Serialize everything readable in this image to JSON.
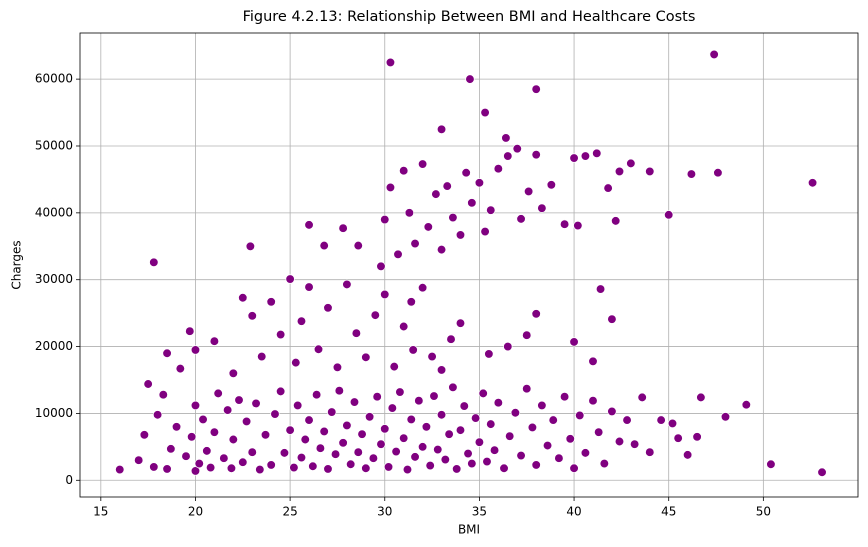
{
  "chart_data": {
    "type": "scatter",
    "title": "Figure 4.2.13: Relationship Between BMI and Healthcare Costs",
    "x_label": "BMI",
    "y_label": "Charges",
    "color": "#800080",
    "grid": true,
    "xlim": [
      13.9,
      55.0
    ],
    "ylim": [
      -2500,
      66900
    ],
    "xticks": [
      15,
      20,
      25,
      30,
      35,
      40,
      45,
      50
    ],
    "yticks": [
      0,
      10000,
      20000,
      30000,
      40000,
      50000,
      60000
    ],
    "x": [
      16,
      17,
      17.3,
      17.5,
      17.8,
      18,
      18.3,
      18.5,
      18.7,
      19,
      19.2,
      19.5,
      19.8,
      20,
      20,
      20.2,
      20.4,
      20.6,
      20.8,
      21,
      21.2,
      21.5,
      21.7,
      21.9,
      22,
      22.3,
      22.5,
      22.7,
      23,
      23.2,
      23.4,
      23.7,
      24,
      24.2,
      24.5,
      24.7,
      25,
      25.2,
      25.4,
      25.6,
      25.8,
      26,
      26.2,
      26.4,
      26.6,
      26.8,
      27,
      27.2,
      27.4,
      27.6,
      27.8,
      28,
      28.2,
      28.4,
      28.6,
      28.8,
      29,
      29.2,
      29.4,
      29.6,
      29.8,
      30,
      30.2,
      30.4,
      30.6,
      30.8,
      31,
      31.2,
      31.4,
      31.6,
      31.8,
      32,
      32.2,
      32.4,
      32.6,
      32.8,
      33,
      33.2,
      33.4,
      33.6,
      33.8,
      34,
      34.2,
      34.4,
      34.6,
      34.8,
      35,
      35.2,
      35.4,
      35.6,
      35.8,
      36,
      36.3,
      36.6,
      36.9,
      37.2,
      37.5,
      37.8,
      38,
      38.3,
      38.6,
      38.9,
      39.2,
      39.5,
      39.8,
      40,
      40.3,
      40.6,
      41,
      41.3,
      41.6,
      42,
      42.4,
      42.8,
      43.2,
      43.6,
      44,
      44.6,
      45.2,
      45.5,
      46,
      46.5,
      46.7,
      48,
      49.1,
      50.4,
      53.1,
      18.5,
      19.7,
      20,
      21,
      22,
      22.5,
      23,
      23.5,
      24,
      24.5,
      25,
      25.3,
      25.6,
      26,
      26.5,
      27,
      27.5,
      28,
      28.5,
      29,
      29.5,
      30,
      30.5,
      31,
      31.5,
      32,
      32.5,
      33,
      33.5,
      34,
      35.5,
      36.5,
      37.5,
      38,
      40,
      41,
      41.4,
      42,
      31.4,
      30,
      30.3,
      30.7,
      31,
      31.3,
      31.6,
      32,
      32.3,
      32.7,
      33,
      33.3,
      33.6,
      34,
      34.3,
      34.6,
      35,
      35.3,
      35.6,
      36,
      36.4,
      36.5,
      37,
      37.2,
      37.6,
      38,
      38.3,
      38.8,
      39.5,
      40,
      40.6,
      41.2,
      41.8,
      42.4,
      43,
      44,
      45,
      46.2,
      47.6,
      52.6,
      42.2,
      40.2,
      30.3,
      34.5,
      47.4,
      38,
      35.3,
      33,
      17.8,
      22.9,
      26,
      27.8,
      28.6,
      26.8,
      29.8
    ],
    "values": [
      1600,
      3000,
      6800,
      14400,
      2000,
      9800,
      12800,
      1700,
      4700,
      8000,
      16700,
      3600,
      6500,
      11200,
      1400,
      2500,
      9100,
      4400,
      1900,
      7200,
      13000,
      3300,
      10500,
      1800,
      6100,
      12000,
      2700,
      8800,
      4200,
      11500,
      1600,
      6800,
      2300,
      9900,
      13300,
      4100,
      7500,
      1900,
      11200,
      3400,
      6100,
      9000,
      2100,
      12800,
      4800,
      7300,
      1700,
      10200,
      3900,
      13400,
      5600,
      8200,
      2400,
      11700,
      4200,
      6900,
      1800,
      9500,
      3300,
      12500,
      5400,
      7700,
      2000,
      10800,
      4300,
      13200,
      6300,
      1600,
      9100,
      3500,
      11900,
      5000,
      8000,
      2200,
      12600,
      4600,
      9800,
      3100,
      6900,
      13900,
      1700,
      7500,
      11100,
      4000,
      2500,
      9300,
      5700,
      13000,
      2800,
      8400,
      4500,
      11600,
      1800,
      6600,
      10100,
      3700,
      13700,
      7900,
      2300,
      11200,
      5200,
      9000,
      3300,
      12500,
      6200,
      1800,
      9700,
      4100,
      11900,
      7200,
      2500,
      10300,
      5800,
      9000,
      5400,
      12400,
      4200,
      9000,
      8500,
      6300,
      3800,
      6500,
      12400,
      9500,
      11300,
      2400,
      1200,
      19000,
      22300,
      19500,
      20800,
      16000,
      27300,
      24600,
      18500,
      26700,
      21800,
      30100,
      17600,
      23800,
      28900,
      19600,
      25800,
      16900,
      29300,
      22000,
      18400,
      24700,
      27800,
      17000,
      23000,
      19500,
      28800,
      18500,
      16500,
      21100,
      23500,
      18900,
      20000,
      21700,
      24900,
      20700,
      17800,
      28600,
      24100,
      26700,
      39000,
      43800,
      33800,
      46300,
      40000,
      35400,
      47300,
      37900,
      42800,
      34500,
      44000,
      39300,
      36700,
      46000,
      41500,
      44500,
      37200,
      40400,
      46600,
      51200,
      48500,
      49600,
      39100,
      43200,
      48700,
      40700,
      44200,
      38300,
      48200,
      48500,
      48900,
      43700,
      46200,
      47400,
      46200,
      39700,
      45800,
      46000,
      44500,
      38800,
      38100,
      62500,
      60000,
      63700,
      58500,
      55000,
      52500,
      32600,
      35000,
      38200,
      37700,
      35100,
      35100,
      32000
    ]
  }
}
